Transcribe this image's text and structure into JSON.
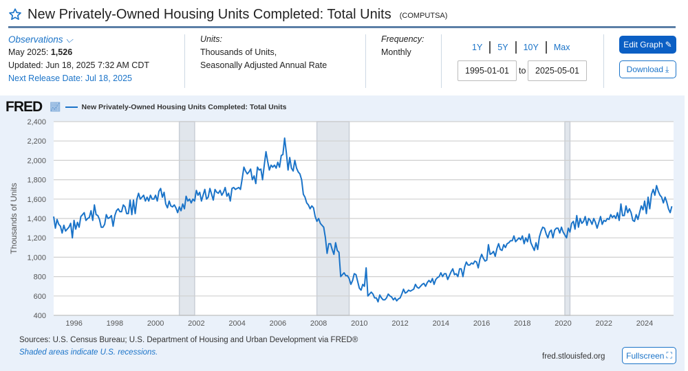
{
  "header": {
    "title": "New Privately-Owned Housing Units Completed: Total Units",
    "series_code": "(COMPUTSA)",
    "star_icon": "star-outline-icon"
  },
  "observations": {
    "label": "Observations",
    "latest_label": "May 2025:",
    "latest_value": "1,526",
    "updated": "Updated: Jun 18, 2025 7:32 AM CDT",
    "next_release": "Next Release Date: Jul 18, 2025"
  },
  "units": {
    "label": "Units:",
    "line1": "Thousands of Units,",
    "line2": "Seasonally Adjusted Annual Rate"
  },
  "frequency": {
    "label": "Frequency:",
    "value": "Monthly"
  },
  "range": {
    "buttons": [
      "1Y",
      "5Y",
      "10Y",
      "Max"
    ],
    "start": "1995-01-01",
    "to": "to",
    "end": "2025-05-01"
  },
  "actions": {
    "edit": "Edit Graph",
    "download": "Download",
    "fullscreen": "Fullscreen"
  },
  "chart_header": {
    "logo": "FRED",
    "legend": "New Privately-Owned Housing Units Completed: Total Units"
  },
  "footer": {
    "sources": "Sources: U.S. Census Bureau; U.S. Department of Housing and Urban Development via FRED®",
    "shaded": "Shaded areas indicate U.S. recessions.",
    "site": "fred.stlouisfed.org"
  },
  "colors": {
    "line": "#1a73c8",
    "accent": "#0b5fc4",
    "recession": "#e1e6ec",
    "panel": "#eaf1fa"
  },
  "chart_data": {
    "type": "line",
    "ylabel": "Thousands of Units",
    "ylim": [
      400,
      2400
    ],
    "yticks": [
      400,
      600,
      800,
      1000,
      1200,
      1400,
      1600,
      1800,
      2000,
      2200,
      2400
    ],
    "ytick_labels": [
      "400",
      "600",
      "800",
      "1,000",
      "1,200",
      "1,400",
      "1,600",
      "1,800",
      "2,000",
      "2,200",
      "2,400"
    ],
    "xticks": [
      "1996",
      "1998",
      "2000",
      "2002",
      "2004",
      "2006",
      "2008",
      "2010",
      "2012",
      "2014",
      "2016",
      "2018",
      "2020",
      "2022",
      "2024"
    ],
    "x_start": "1995-01",
    "x_end": "2025-05",
    "frequency": "monthly",
    "grid": true,
    "recessions": [
      [
        "2001-03",
        "2001-11"
      ],
      [
        "2007-12",
        "2009-06"
      ],
      [
        "2020-02",
        "2020-04"
      ]
    ],
    "series": [
      {
        "name": "New Privately-Owned Housing Units Completed: Total Units",
        "values": [
          1420,
          1300,
          1390,
          1340,
          1320,
          1250,
          1330,
          1270,
          1290,
          1310,
          1350,
          1200,
          1380,
          1290,
          1360,
          1310,
          1420,
          1440,
          1460,
          1380,
          1400,
          1410,
          1480,
          1380,
          1540,
          1440,
          1430,
          1390,
          1310,
          1310,
          1340,
          1440,
          1400,
          1410,
          1430,
          1320,
          1430,
          1480,
          1500,
          1470,
          1470,
          1540,
          1520,
          1450,
          1450,
          1590,
          1440,
          1590,
          1450,
          1600,
          1660,
          1600,
          1620,
          1640,
          1580,
          1620,
          1580,
          1640,
          1600,
          1600,
          1640,
          1580,
          1680,
          1710,
          1620,
          1670,
          1550,
          1510,
          1580,
          1530,
          1520,
          1540,
          1510,
          1460,
          1520,
          1480,
          1550,
          1500,
          1630,
          1580,
          1600,
          1560,
          1600,
          1580,
          1690,
          1640,
          1670,
          1580,
          1640,
          1700,
          1600,
          1620,
          1710,
          1650,
          1590,
          1700,
          1670,
          1660,
          1690,
          1640,
          1670,
          1720,
          1630,
          1660,
          1580,
          1710,
          1720,
          1700,
          1710,
          1720,
          1700,
          1810,
          1930,
          1890,
          1860,
          1880,
          1910,
          1800,
          1840,
          1760,
          1930,
          1900,
          1910,
          1800,
          1950,
          2090,
          1990,
          1900,
          1950,
          1930,
          1950,
          1920,
          1980,
          1930,
          2050,
          2060,
          2230,
          2080,
          1900,
          2030,
          1920,
          1890,
          2000,
          1920,
          1880,
          1860,
          1800,
          1650,
          1620,
          1560,
          1540,
          1500,
          1530,
          1510,
          1420,
          1370,
          1400,
          1350,
          1330,
          1310,
          1200,
          1040,
          1140,
          1140,
          1080,
          1030,
          1150,
          1070,
          1050,
          800,
          820,
          840,
          810,
          810,
          780,
          720,
          760,
          830,
          820,
          750,
          680,
          660,
          720,
          700,
          890,
          600,
          620,
          640,
          620,
          580,
          580,
          540,
          610,
          580,
          560,
          560,
          580,
          620,
          600,
          590,
          560,
          580,
          550,
          570,
          580,
          620,
          670,
          630,
          640,
          660,
          650,
          660,
          670,
          720,
          690,
          680,
          700,
          720,
          730,
          700,
          740,
          760,
          740,
          780,
          720,
          770,
          790,
          800,
          840,
          800,
          830,
          830,
          770,
          810,
          850,
          880,
          820,
          830,
          800,
          880,
          880,
          800,
          900,
          950,
          920,
          920,
          940,
          930,
          960,
          950,
          890,
          980,
          1030,
          990,
          960,
          970,
          1130,
          1030,
          1040,
          1060,
          1010,
          1090,
          1140,
          1080,
          1070,
          1130,
          1100,
          1140,
          1150,
          1170,
          1170,
          1220,
          1160,
          1180,
          1200,
          1180,
          1220,
          1140,
          1200,
          1160,
          1240,
          1150,
          1110,
          1070,
          1150,
          1080,
          1210,
          1270,
          1310,
          1300,
          1240,
          1200,
          1260,
          1280,
          1200,
          1280,
          1300,
          1300,
          1250,
          1310,
          1260,
          1230,
          1200,
          1300,
          1260,
          1350,
          1370,
          1290,
          1430,
          1310,
          1400,
          1350,
          1370,
          1420,
          1330,
          1400,
          1380,
          1340,
          1400,
          1360,
          1300,
          1360,
          1420,
          1340,
          1380,
          1370,
          1400,
          1390,
          1440,
          1410,
          1430,
          1400,
          1460,
          1380,
          1550,
          1430,
          1430,
          1530,
          1460,
          1500,
          1460,
          1380,
          1370,
          1440,
          1390,
          1460,
          1530,
          1490,
          1580,
          1450,
          1620,
          1500,
          1650,
          1700,
          1640,
          1740,
          1680,
          1640,
          1620,
          1560,
          1620,
          1570,
          1500,
          1460,
          1526
        ]
      }
    ]
  }
}
